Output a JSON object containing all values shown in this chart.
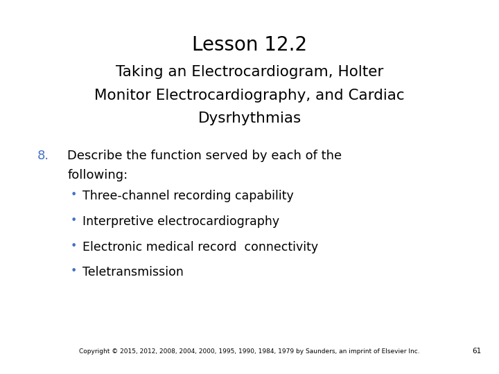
{
  "title": "Lesson 12.2",
  "subtitle_line1": "Taking an Electrocardiogram, Holter",
  "subtitle_line2": "Monitor Electrocardiography, and Cardiac",
  "subtitle_line3": "Dysrhythmias",
  "item_number": "8.",
  "item_number_color": "#4472c4",
  "item_text_line1": "Describe the function served by each of the",
  "item_text_line2": "following:",
  "bullets": [
    "Three-channel recording capability",
    "Interpretive electrocardiography",
    "Electronic medical record  connectivity",
    "Teletransmission"
  ],
  "bullet_color": "#4472c4",
  "copyright": "Copyright © 2015, 2012, 2008, 2004, 2000, 1995, 1990, 1984, 1979 by Saunders, an imprint of Elsevier Inc.",
  "page_number": "61",
  "background_color": "#ffffff",
  "text_color": "#000000",
  "title_fontsize": 20,
  "subtitle_fontsize": 15.5,
  "item_fontsize": 13,
  "bullet_fontsize": 12.5,
  "copyright_fontsize": 6.5
}
